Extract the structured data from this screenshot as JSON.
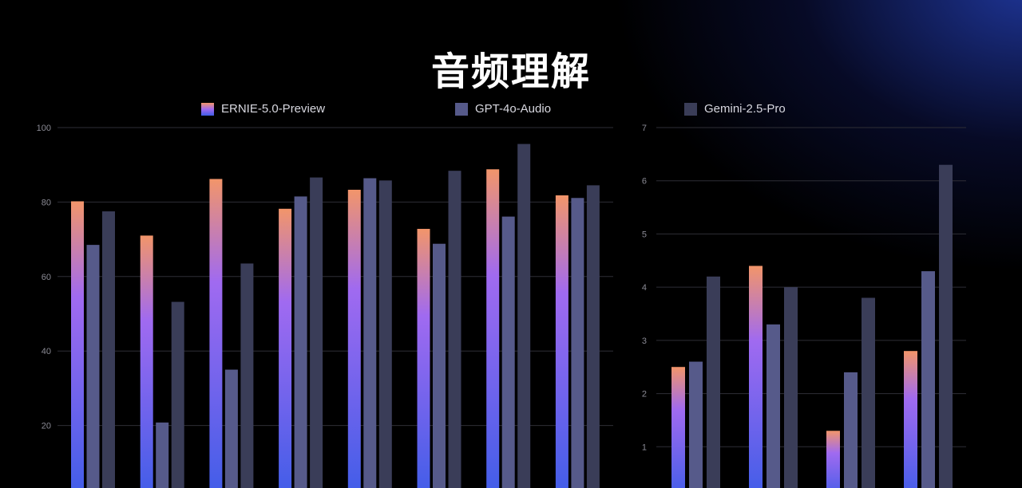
{
  "title": "音频理解",
  "legend": [
    {
      "name": "ERNIE-5.0-Preview"
    },
    {
      "name": "GPT-4o-Audio"
    },
    {
      "name": "Gemini-2.5-Pro"
    }
  ],
  "colors": {
    "ernie_top": "#f2956a",
    "ernie_mid": "#a06af0",
    "ernie_bottom": "#3f5de8",
    "gpt4o": "#565a8a",
    "gemini": "#3a3d58",
    "grid": "#2e2e36",
    "tick": "#8a8a94"
  },
  "chart_data": [
    {
      "type": "bar",
      "ylim": [
        0,
        100
      ],
      "yticks": [
        20,
        40,
        60,
        80,
        100
      ],
      "grid": true,
      "legend_position": "top",
      "categories": [
        "",
        "",
        "",
        "",
        "",
        "",
        "",
        ""
      ],
      "series": [
        {
          "name": "ERNIE-5.0-Preview",
          "values": [
            80.2,
            71.0,
            86.2,
            78.2,
            83.3,
            72.8,
            88.8,
            81.8
          ]
        },
        {
          "name": "GPT-4o-Audio",
          "values": [
            68.5,
            20.8,
            35.0,
            81.5,
            86.4,
            68.8,
            76.1,
            81.1
          ]
        },
        {
          "name": "Gemini-2.5-Pro",
          "values": [
            77.5,
            53.2,
            63.5,
            86.6,
            85.8,
            88.4,
            95.6,
            84.5
          ]
        }
      ]
    },
    {
      "type": "bar",
      "ylim": [
        0,
        7
      ],
      "yticks": [
        1,
        2,
        3,
        4,
        5,
        6,
        7
      ],
      "grid": true,
      "legend_position": "top",
      "categories": [
        "",
        "",
        "",
        ""
      ],
      "series": [
        {
          "name": "ERNIE-5.0-Preview",
          "values": [
            2.5,
            4.4,
            1.3,
            2.8
          ]
        },
        {
          "name": "GPT-4o-Audio",
          "values": [
            2.6,
            3.3,
            2.4,
            4.3
          ]
        },
        {
          "name": "Gemini-2.5-Pro",
          "values": [
            4.2,
            4.0,
            3.8,
            6.3
          ]
        }
      ]
    }
  ]
}
